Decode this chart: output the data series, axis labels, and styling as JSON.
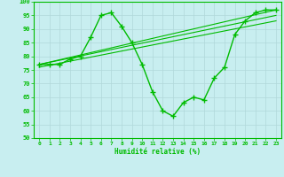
{
  "xlabel": "Humidité relative (%)",
  "xlim": [
    -0.5,
    23.5
  ],
  "ylim": [
    50,
    100
  ],
  "xticks": [
    0,
    1,
    2,
    3,
    4,
    5,
    6,
    7,
    8,
    9,
    10,
    11,
    12,
    13,
    14,
    15,
    16,
    17,
    18,
    19,
    20,
    21,
    22,
    23
  ],
  "yticks": [
    50,
    55,
    60,
    65,
    70,
    75,
    80,
    85,
    90,
    95,
    100
  ],
  "bg_color": "#c8eef0",
  "grid_color": "#b0d8da",
  "line_color": "#00bb00",
  "main_line_x": [
    0,
    1,
    2,
    3,
    4,
    5,
    6,
    7,
    8,
    9,
    10,
    11,
    12,
    13,
    14,
    15,
    16,
    17,
    18,
    19,
    20,
    21,
    22,
    23
  ],
  "main_line_y": [
    77,
    77,
    77,
    79,
    80,
    87,
    95,
    96,
    91,
    85,
    77,
    67,
    60,
    58,
    63,
    65,
    64,
    72,
    76,
    88,
    93,
    96,
    97,
    97
  ],
  "line2_x": [
    0,
    23
  ],
  "line2_y": [
    77,
    97
  ],
  "line3_x": [
    0,
    23
  ],
  "line3_y": [
    77,
    95
  ],
  "line4_x": [
    0,
    23
  ],
  "line4_y": [
    76,
    93
  ],
  "marker": "+",
  "marker_size": 4,
  "linewidth": 1.0,
  "trend_linewidth": 0.8
}
